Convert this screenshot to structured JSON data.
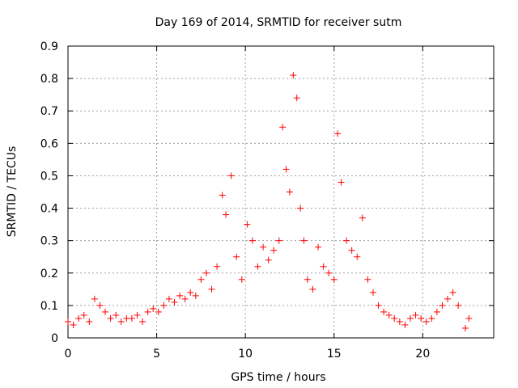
{
  "chart_data": {
    "type": "scatter",
    "title": "Day 169 of 2014, SRMTID for receiver sutm",
    "xlabel": "GPS time / hours",
    "ylabel": "SRMTID / TECUs",
    "xlim": [
      0,
      24
    ],
    "ylim": [
      0,
      0.9
    ],
    "xticks": [
      "0",
      "5",
      "10",
      "15",
      "20"
    ],
    "xtick_values": [
      0,
      5,
      10,
      15,
      20
    ],
    "yticks": [
      "0",
      "0.1",
      "0.2",
      "0.3",
      "0.4",
      "0.5",
      "0.6",
      "0.7",
      "0.8",
      "0.9"
    ],
    "ytick_values": [
      0,
      0.1,
      0.2,
      0.3,
      0.4,
      0.5,
      0.6,
      0.7,
      0.8,
      0.9
    ],
    "grid": true,
    "marker": "+",
    "color": "#ff0000",
    "series": [
      {
        "name": "SRMTID",
        "x": [
          0.0,
          0.3,
          0.6,
          0.9,
          1.2,
          1.5,
          1.8,
          2.1,
          2.4,
          2.7,
          3.0,
          3.3,
          3.6,
          3.9,
          4.2,
          4.5,
          4.8,
          5.1,
          5.4,
          5.7,
          6.0,
          6.3,
          6.6,
          6.9,
          7.2,
          7.5,
          7.8,
          8.1,
          8.4,
          8.7,
          8.9,
          9.2,
          9.5,
          9.8,
          10.1,
          10.4,
          10.7,
          11.0,
          11.3,
          11.6,
          11.9,
          12.1,
          12.3,
          12.5,
          12.7,
          12.9,
          13.1,
          13.3,
          13.5,
          13.8,
          14.1,
          14.4,
          14.7,
          15.0,
          15.2,
          15.4,
          15.7,
          16.0,
          16.3,
          16.6,
          16.9,
          17.2,
          17.5,
          17.8,
          18.1,
          18.4,
          18.7,
          19.0,
          19.3,
          19.6,
          19.9,
          20.2,
          20.5,
          20.8,
          21.1,
          21.4,
          21.7,
          22.0,
          22.4,
          22.6
        ],
        "y": [
          0.05,
          0.04,
          0.06,
          0.07,
          0.05,
          0.12,
          0.1,
          0.08,
          0.06,
          0.07,
          0.05,
          0.06,
          0.06,
          0.07,
          0.05,
          0.08,
          0.09,
          0.08,
          0.1,
          0.12,
          0.11,
          0.13,
          0.12,
          0.14,
          0.13,
          0.18,
          0.2,
          0.15,
          0.22,
          0.44,
          0.38,
          0.5,
          0.25,
          0.18,
          0.35,
          0.3,
          0.22,
          0.28,
          0.24,
          0.27,
          0.3,
          0.65,
          0.52,
          0.45,
          0.81,
          0.74,
          0.4,
          0.3,
          0.18,
          0.15,
          0.28,
          0.22,
          0.2,
          0.18,
          0.63,
          0.48,
          0.3,
          0.27,
          0.25,
          0.37,
          0.18,
          0.14,
          0.1,
          0.08,
          0.07,
          0.06,
          0.05,
          0.04,
          0.06,
          0.07,
          0.06,
          0.05,
          0.06,
          0.08,
          0.1,
          0.12,
          0.14,
          0.1,
          0.03,
          0.06
        ]
      }
    ]
  }
}
